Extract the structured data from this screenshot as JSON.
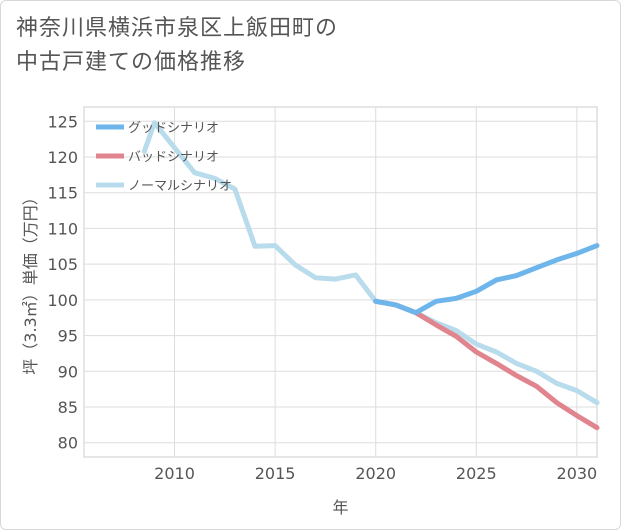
{
  "title_line1": "神奈川県横浜市泉区上飯田町の",
  "title_line2": "中古戸建ての価格推移",
  "chart_data": {
    "type": "line",
    "title": "神奈川県横浜市泉区上飯田町の中古戸建ての価格推移",
    "xlabel": "年",
    "ylabel": "坪（3.3㎡）単価（万円）",
    "xlim": [
      2005.5,
      2031
    ],
    "ylim": [
      78,
      127
    ],
    "xticks": [
      2010,
      2015,
      2020,
      2025,
      2030
    ],
    "yticks": [
      80,
      85,
      90,
      95,
      100,
      105,
      110,
      115,
      120,
      125
    ],
    "legend_position": "top-left",
    "series": [
      {
        "name": "グッドシナリオ",
        "color": "#6db5ea",
        "x": [
          2020,
          2021,
          2022,
          2023,
          2024,
          2025,
          2026,
          2027,
          2028,
          2029,
          2030,
          2031
        ],
        "y": [
          99.8,
          99.3,
          98.2,
          99.8,
          100.2,
          101.2,
          102.8,
          103.4,
          104.5,
          105.6,
          106.5,
          107.6
        ]
      },
      {
        "name": "バッドシナリオ",
        "color": "#e0848e",
        "x": [
          2020,
          2021,
          2022,
          2023,
          2024,
          2025,
          2026,
          2027,
          2028,
          2029,
          2030,
          2031
        ],
        "y": [
          99.8,
          99.3,
          98.2,
          96.5,
          94.9,
          92.7,
          91.1,
          89.4,
          87.9,
          85.6,
          83.8,
          82.1
        ]
      },
      {
        "name": "ノーマルシナリオ",
        "color": "#b8dcec",
        "x": [
          2008.5,
          2009,
          2010,
          2011,
          2012,
          2013,
          2014,
          2015,
          2016,
          2017,
          2018,
          2019,
          2020,
          2021,
          2022,
          2023,
          2024,
          2025,
          2026,
          2027,
          2028,
          2029,
          2030,
          2031
        ],
        "y": [
          120.8,
          124.8,
          121.3,
          117.8,
          117.0,
          115.5,
          107.5,
          107.6,
          104.9,
          103.1,
          102.9,
          103.5,
          99.8,
          99.3,
          98.2,
          96.8,
          95.7,
          93.8,
          92.7,
          91.1,
          90.0,
          88.3,
          87.3,
          85.6
        ]
      }
    ]
  }
}
